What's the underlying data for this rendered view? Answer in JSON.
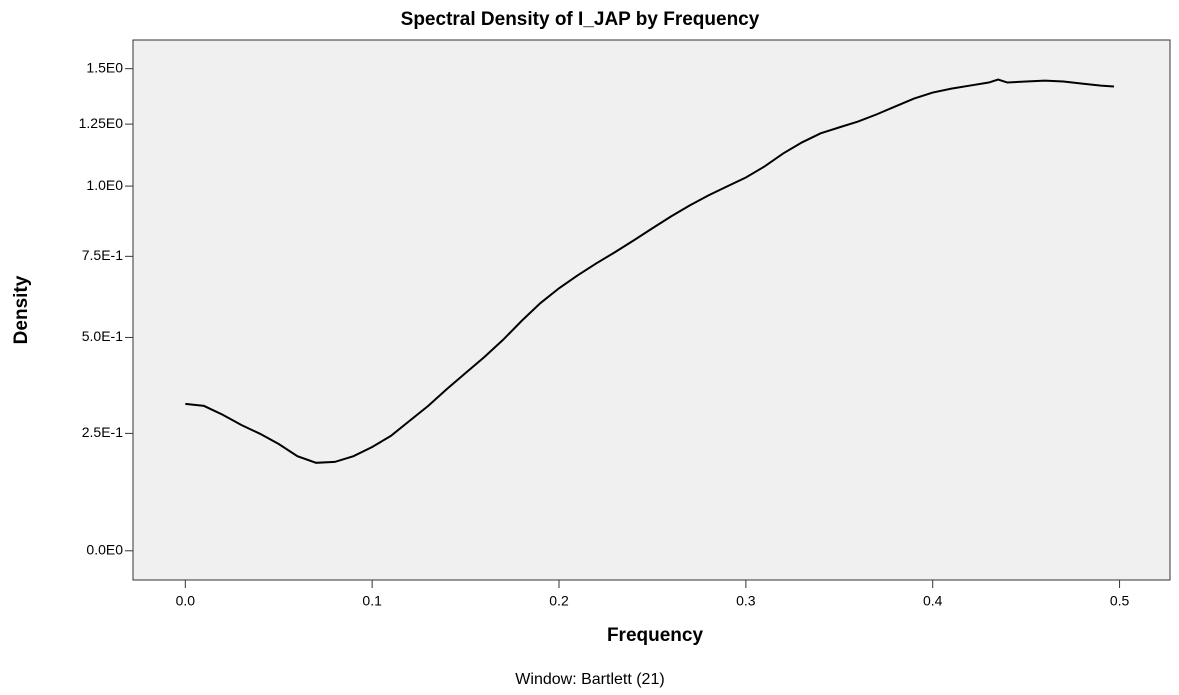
{
  "chart_data": {
    "type": "line",
    "title": "Spectral Density of I_JAP by Frequency",
    "x_label": "Frequency",
    "y_label": "Density",
    "caption": "Window: Bartlett (21)",
    "yscale": "log1p",
    "x": [
      0.0,
      0.01,
      0.02,
      0.03,
      0.04,
      0.05,
      0.06,
      0.07,
      0.08,
      0.09,
      0.1,
      0.11,
      0.12,
      0.13,
      0.14,
      0.15,
      0.16,
      0.17,
      0.18,
      0.19,
      0.2,
      0.21,
      0.22,
      0.23,
      0.24,
      0.25,
      0.26,
      0.27,
      0.28,
      0.29,
      0.3,
      0.31,
      0.32,
      0.33,
      0.34,
      0.35,
      0.36,
      0.37,
      0.38,
      0.39,
      0.4,
      0.41,
      0.42,
      0.43,
      0.435,
      0.44,
      0.45,
      0.46,
      0.47,
      0.48,
      0.49,
      0.497
    ],
    "series": [
      {
        "name": "Density",
        "color": "#000000",
        "values": [
          0.322,
          0.317,
          0.295,
          0.27,
          0.249,
          0.225,
          0.197,
          0.182,
          0.184,
          0.197,
          0.218,
          0.244,
          0.28,
          0.317,
          0.36,
          0.402,
          0.445,
          0.493,
          0.548,
          0.601,
          0.647,
          0.688,
          0.727,
          0.764,
          0.804,
          0.846,
          0.888,
          0.928,
          0.965,
          0.999,
          1.033,
          1.076,
          1.128,
          1.173,
          1.211,
          1.236,
          1.261,
          1.292,
          1.327,
          1.362,
          1.389,
          1.407,
          1.421,
          1.435,
          1.449,
          1.435,
          1.44,
          1.444,
          1.44,
          1.43,
          1.421,
          1.417
        ]
      }
    ],
    "xlim": [
      -0.028,
      0.527
    ],
    "xticks": [
      {
        "value": 0.0,
        "label": "0.0"
      },
      0.1,
      0.2,
      0.3,
      0.4,
      0.5
    ],
    "ylim": [
      -0.054,
      1.64
    ],
    "yticks": [
      {
        "value": 0,
        "label": "0.0E0"
      },
      {
        "value": 0.25,
        "label": "2.5E-1"
      },
      {
        "value": 0.5,
        "label": "5.0E-1"
      },
      {
        "value": 0.75,
        "label": "7.5E-1"
      },
      {
        "value": 1.0,
        "label": "1.0E0"
      },
      {
        "value": 1.25,
        "label": "1.25E0"
      },
      {
        "value": 1.5,
        "label": "1.5E0"
      }
    ],
    "grid": false
  }
}
